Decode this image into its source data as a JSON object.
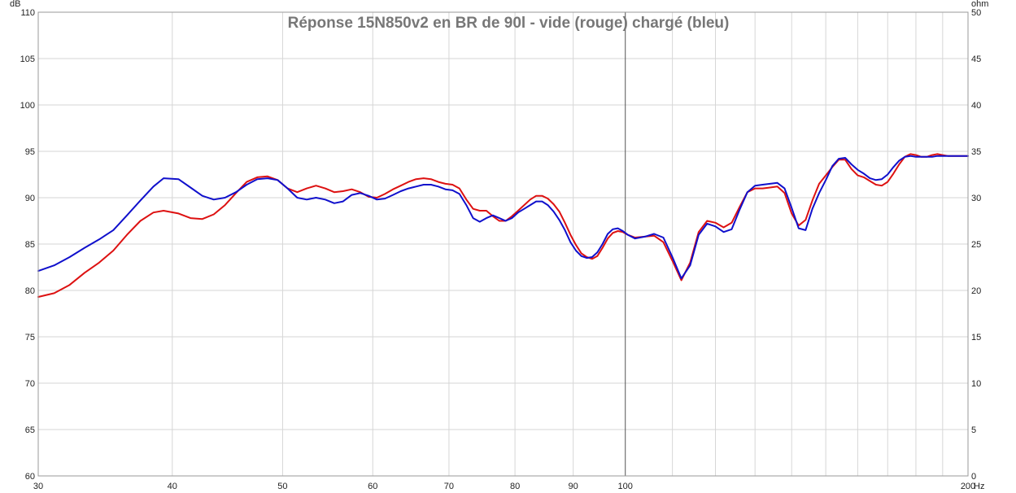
{
  "chart_data": {
    "type": "line",
    "title": "Réponse 15N850v2 en BR de 90l - vide (rouge) chargé (bleu)",
    "x_scale": "log",
    "xlim": [
      30.5,
      200
    ],
    "ylim": [
      60,
      110
    ],
    "y2lim": [
      0,
      50
    ],
    "left_unit": "dB",
    "right_unit": "ohm",
    "x_unit": "Hz",
    "grid": true,
    "x_ticks": [
      {
        "value": 30.5,
        "label": "30"
      },
      {
        "value": 40,
        "label": "40"
      },
      {
        "value": 50,
        "label": "50"
      },
      {
        "value": 60,
        "label": "60"
      },
      {
        "value": 70,
        "label": "70"
      },
      {
        "value": 80,
        "label": "80"
      },
      {
        "value": 90,
        "label": "90"
      },
      {
        "value": 100,
        "label": "100"
      },
      {
        "value": 200,
        "label": "200"
      }
    ],
    "y_ticks": [
      "60",
      "65",
      "70",
      "75",
      "80",
      "85",
      "90",
      "95",
      "100",
      "105",
      "110"
    ],
    "y2_ticks": [
      "0",
      "5",
      "10",
      "15",
      "20",
      "25",
      "30",
      "35",
      "40",
      "45",
      "50"
    ],
    "colors": {
      "red": "#dd1111",
      "blue": "#1010cc",
      "grid": "#d6d6d6",
      "major_grid": "#555555"
    },
    "series": [
      {
        "color": "#dd1111",
        "x": [
          30.5,
          31.5,
          32.5,
          33.5,
          34.5,
          35.5,
          36.5,
          37.5,
          38.5,
          39.3,
          40.5,
          41.5,
          42.5,
          43.5,
          44.5,
          45.5,
          46.5,
          47.5,
          48.5,
          49.5,
          50.5,
          51.5,
          52.5,
          53.5,
          54.5,
          55.5,
          56.5,
          57.5,
          58.5,
          59.5,
          60.5,
          61.5,
          62.5,
          63.5,
          64.5,
          65.5,
          66.5,
          67.5,
          68.5,
          69.5,
          70.5,
          71.5,
          72.5,
          73.5,
          74.5,
          75.5,
          76.5,
          77.5,
          78.5,
          79.5,
          80.5,
          81.5,
          82.5,
          83.5,
          84.5,
          85.5,
          86.5,
          87.5,
          88.5,
          89.5,
          90.5,
          91.5,
          92.5,
          93.5,
          94.5,
          95.5,
          96.5,
          97.5,
          98.5,
          99.5,
          100.5,
          102,
          104,
          106,
          108,
          110,
          112,
          114,
          116,
          118,
          120,
          122,
          124,
          126,
          128,
          130,
          132,
          134,
          136,
          138,
          140,
          142,
          144,
          146,
          148,
          150,
          152,
          154,
          156,
          158,
          160,
          162,
          164,
          166,
          168,
          170,
          172,
          174,
          176,
          178,
          180,
          182,
          184,
          186,
          188,
          190,
          192,
          194,
          196,
          198,
          200
        ],
        "values": [
          79.3,
          79.7,
          80.6,
          81.9,
          83.0,
          84.3,
          86.0,
          87.5,
          88.4,
          88.6,
          88.3,
          87.8,
          87.7,
          88.2,
          89.2,
          90.5,
          91.7,
          92.2,
          92.3,
          91.9,
          91.0,
          90.6,
          91.0,
          91.3,
          91.0,
          90.6,
          90.7,
          90.9,
          90.6,
          90.1,
          90.0,
          90.4,
          90.9,
          91.3,
          91.7,
          92.0,
          92.1,
          92.0,
          91.7,
          91.5,
          91.4,
          91.0,
          89.8,
          88.8,
          88.6,
          88.6,
          88.0,
          87.5,
          87.5,
          88.0,
          88.6,
          89.2,
          89.8,
          90.2,
          90.2,
          89.9,
          89.3,
          88.5,
          87.3,
          86.0,
          84.9,
          84.0,
          83.6,
          83.4,
          83.7,
          84.6,
          85.6,
          86.2,
          86.4,
          86.3,
          86.0,
          85.7,
          85.8,
          85.9,
          85.2,
          83.2,
          81.1,
          83.0,
          86.3,
          87.5,
          87.3,
          86.8,
          87.3,
          89.0,
          90.6,
          91.0,
          91.0,
          91.1,
          91.2,
          90.5,
          88.3,
          87.0,
          87.6,
          89.7,
          91.5,
          92.4,
          93.3,
          94.1,
          94.1,
          93.1,
          92.4,
          92.2,
          91.8,
          91.4,
          91.3,
          91.7,
          92.6,
          93.6,
          94.4,
          94.7,
          94.6,
          94.4,
          94.4,
          94.6,
          94.7,
          94.6,
          94.5,
          94.5,
          94.5,
          94.5,
          94.5
        ]
      },
      {
        "color": "#1010cc",
        "x": [
          30.5,
          31.5,
          32.5,
          33.5,
          34.5,
          35.5,
          36.5,
          37.5,
          38.5,
          39.3,
          40.5,
          41.5,
          42.5,
          43.5,
          44.5,
          45.5,
          46.5,
          47.5,
          48.5,
          49.5,
          50.5,
          51.5,
          52.5,
          53.5,
          54.5,
          55.5,
          56.5,
          57.5,
          58.5,
          59.5,
          60.5,
          61.5,
          62.5,
          63.5,
          64.5,
          65.5,
          66.5,
          67.5,
          68.5,
          69.5,
          70.5,
          71.5,
          72.5,
          73.5,
          74.5,
          75.5,
          76.5,
          77.5,
          78.5,
          79.5,
          80.5,
          81.5,
          82.5,
          83.5,
          84.5,
          85.5,
          86.5,
          87.5,
          88.5,
          89.5,
          90.5,
          91.5,
          92.5,
          93.5,
          94.5,
          95.5,
          96.5,
          97.5,
          98.5,
          99.5,
          100.5,
          102,
          104,
          106,
          108,
          110,
          112,
          114,
          116,
          118,
          120,
          122,
          124,
          126,
          128,
          130,
          132,
          134,
          136,
          138,
          140,
          142,
          144,
          146,
          148,
          150,
          152,
          154,
          156,
          158,
          160,
          162,
          164,
          166,
          168,
          170,
          172,
          174,
          176,
          178,
          180,
          182,
          184,
          186,
          188,
          190,
          192,
          194,
          196,
          198,
          200
        ],
        "values": [
          82.1,
          82.7,
          83.6,
          84.6,
          85.5,
          86.5,
          88.1,
          89.7,
          91.2,
          92.1,
          92.0,
          91.1,
          90.2,
          89.8,
          90.0,
          90.6,
          91.4,
          92.0,
          92.1,
          91.9,
          91.0,
          90.0,
          89.8,
          90.0,
          89.8,
          89.4,
          89.6,
          90.3,
          90.5,
          90.2,
          89.8,
          89.9,
          90.3,
          90.7,
          91.0,
          91.2,
          91.4,
          91.4,
          91.2,
          90.9,
          90.8,
          90.4,
          89.2,
          87.8,
          87.4,
          87.8,
          88.1,
          87.8,
          87.5,
          87.8,
          88.4,
          88.8,
          89.2,
          89.6,
          89.6,
          89.2,
          88.5,
          87.6,
          86.5,
          85.2,
          84.3,
          83.7,
          83.5,
          83.6,
          84.1,
          85.0,
          86.1,
          86.6,
          86.7,
          86.4,
          86.0,
          85.6,
          85.8,
          86.1,
          85.7,
          83.6,
          81.3,
          82.7,
          86.0,
          87.2,
          86.9,
          86.3,
          86.6,
          88.7,
          90.6,
          91.3,
          91.4,
          91.5,
          91.6,
          91.0,
          88.9,
          86.7,
          86.5,
          88.8,
          90.5,
          91.9,
          93.4,
          94.2,
          94.3,
          93.6,
          93.0,
          92.6,
          92.1,
          91.9,
          92.0,
          92.5,
          93.3,
          94.0,
          94.4,
          94.5,
          94.4,
          94.4,
          94.4,
          94.4,
          94.5,
          94.5,
          94.5,
          94.5,
          94.5,
          94.5,
          94.5
        ]
      }
    ]
  }
}
